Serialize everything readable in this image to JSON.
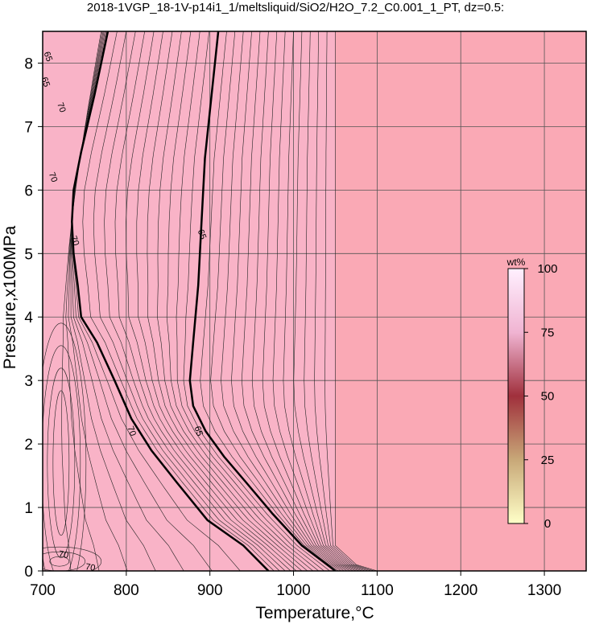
{
  "chart_data": {
    "type": "heatmap",
    "title": "2018-1VGP_18-1V-p14i1_1/meltsliquid/SiO2/H2O_7.2_C0.001_1_PT, dz=0.5:",
    "xlabel": "Temperature,°C",
    "ylabel": "Pressure,x100MPa",
    "xlim": [
      700,
      1350
    ],
    "ylim": [
      0,
      8.5
    ],
    "x_ticks": [
      "700",
      "800",
      "900",
      "1000",
      "1100",
      "1200",
      "1300"
    ],
    "y_ticks": [
      "0",
      "1",
      "2",
      "3",
      "4",
      "5",
      "6",
      "7",
      "8"
    ],
    "grid": true,
    "background_colors": {
      "melt_field": "#f9b3c7",
      "no_melt_field": "#faa9b5"
    },
    "no_melt_boundary": [
      {
        "T": 1050,
        "P": 8.5
      },
      {
        "T": 1050,
        "P": 0.4
      },
      {
        "T": 1075,
        "P": 0.1
      },
      {
        "T": 1100,
        "P": 0
      }
    ],
    "bold_contours": [
      {
        "value": "70",
        "points": [
          {
            "T": 778,
            "P": 8.5
          },
          {
            "T": 762,
            "P": 7.5
          },
          {
            "T": 746,
            "P": 6.6
          },
          {
            "T": 737,
            "P": 6.0
          },
          {
            "T": 735,
            "P": 5.5
          },
          {
            "T": 737,
            "P": 5.0
          },
          {
            "T": 742,
            "P": 4.5
          },
          {
            "T": 746,
            "P": 4.0
          },
          {
            "T": 765,
            "P": 3.6
          },
          {
            "T": 786,
            "P": 3.0
          },
          {
            "T": 806,
            "P": 2.4
          },
          {
            "T": 830,
            "P": 1.9
          },
          {
            "T": 860,
            "P": 1.4
          },
          {
            "T": 897,
            "P": 0.8
          },
          {
            "T": 940,
            "P": 0.4
          },
          {
            "T": 970,
            "P": 0
          }
        ]
      },
      {
        "value": "65",
        "points": [
          {
            "T": 910,
            "P": 8.5
          },
          {
            "T": 902,
            "P": 7.5
          },
          {
            "T": 894,
            "P": 6.5
          },
          {
            "T": 890,
            "P": 5.5
          },
          {
            "T": 886,
            "P": 4.5
          },
          {
            "T": 880,
            "P": 3.6
          },
          {
            "T": 876,
            "P": 3.0
          },
          {
            "T": 880,
            "P": 2.6
          },
          {
            "T": 895,
            "P": 2.2
          },
          {
            "T": 917,
            "P": 1.8
          },
          {
            "T": 943,
            "P": 1.4
          },
          {
            "T": 975,
            "P": 0.9
          },
          {
            "T": 1010,
            "P": 0.4
          },
          {
            "T": 1050,
            "P": 0
          }
        ]
      }
    ],
    "contour_labels": [
      {
        "text": "65",
        "T": 706,
        "P": 8.1
      },
      {
        "text": "65",
        "T": 703,
        "P": 7.7
      },
      {
        "text": "70",
        "T": 722,
        "P": 7.3
      },
      {
        "text": "70",
        "T": 712,
        "P": 6.2
      },
      {
        "text": "70",
        "T": 738,
        "P": 5.2
      },
      {
        "text": "65",
        "T": 890,
        "P": 5.3
      },
      {
        "text": "70",
        "T": 806,
        "P": 2.2
      },
      {
        "text": "65",
        "T": 886,
        "P": 2.2
      },
      {
        "text": "70",
        "T": 725,
        "P": 0.25
      },
      {
        "text": "70",
        "T": 757,
        "P": 0.05
      }
    ],
    "colorbar": {
      "unit": "wt%",
      "range": [
        0,
        100
      ],
      "ticks": [
        "0",
        "25",
        "50",
        "75",
        "100"
      ],
      "gradient": [
        "#ffffc8",
        "#c8a878",
        "#a0303c",
        "#f0b4d2",
        "#fff0ff"
      ]
    }
  }
}
